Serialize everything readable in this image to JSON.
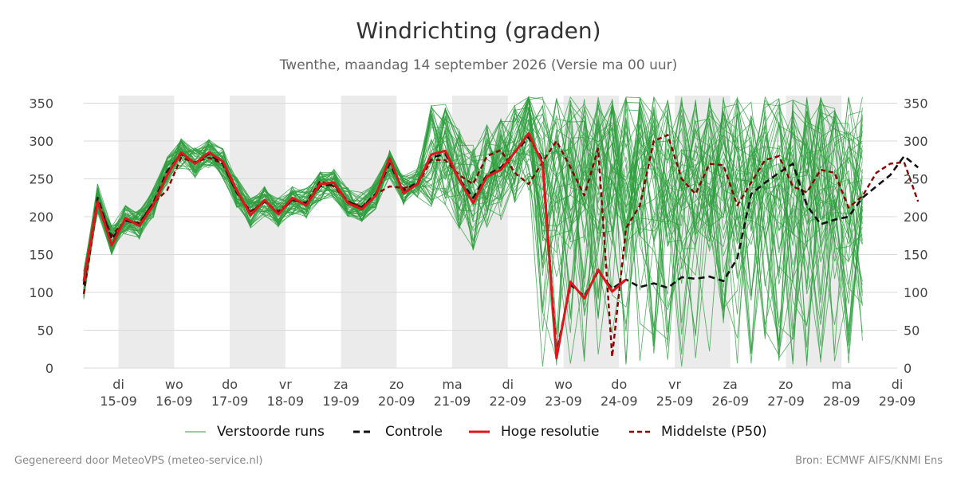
{
  "header": {
    "title": "Windrichting (graden)",
    "subtitle": "Twenthe, maandag 14 september 2026 (Versie ma 00 uur)"
  },
  "legend": {
    "ensemble": "Verstoorde runs",
    "control": "Controle",
    "hires": "Hoge resolutie",
    "median": "Middelste (P50)"
  },
  "footer": {
    "left": "Gegenereerd door MeteoVPS (meteo-service.nl)",
    "right": "Bron: ECMWF AIFS/KNMI Ens"
  },
  "colors": {
    "ensemble": "#2e9e3e",
    "control": "#111111",
    "hires": "#e0151b",
    "median": "#8b0000",
    "night_band": "#ebebeb",
    "grid": "#d9d9d9"
  },
  "chart_data": {
    "type": "line",
    "title": "Windrichting (graden)",
    "subtitle": "Twenthe, maandag 14 september 2026 (Versie ma 00 uur)",
    "ylim": [
      0,
      360
    ],
    "yticks": [
      0,
      50,
      100,
      150,
      200,
      250,
      300,
      350
    ],
    "xlim": [
      "2026-09-14 09:00",
      "2026-09-29 00:00"
    ],
    "x_ticks": [
      {
        "date": "2026-09-15",
        "day": "di",
        "label": "15-09"
      },
      {
        "date": "2026-09-16",
        "day": "wo",
        "label": "16-09"
      },
      {
        "date": "2026-09-17",
        "day": "do",
        "label": "17-09"
      },
      {
        "date": "2026-09-18",
        "day": "vr",
        "label": "18-09"
      },
      {
        "date": "2026-09-19",
        "day": "za",
        "label": "19-09"
      },
      {
        "date": "2026-09-20",
        "day": "zo",
        "label": "20-09"
      },
      {
        "date": "2026-09-21",
        "day": "ma",
        "label": "21-09"
      },
      {
        "date": "2026-09-22",
        "day": "di",
        "label": "22-09"
      },
      {
        "date": "2026-09-23",
        "day": "wo",
        "label": "23-09"
      },
      {
        "date": "2026-09-24",
        "day": "do",
        "label": "24-09"
      },
      {
        "date": "2026-09-25",
        "day": "vr",
        "label": "25-09"
      },
      {
        "date": "2026-09-26",
        "day": "za",
        "label": "26-09"
      },
      {
        "date": "2026-09-27",
        "day": "zo",
        "label": "27-09"
      },
      {
        "date": "2026-09-28",
        "day": "ma",
        "label": "28-09"
      },
      {
        "date": "2026-09-29",
        "day": "di",
        "label": "29-09"
      }
    ],
    "shaded_days": [
      "2026-09-15",
      "2026-09-17",
      "2026-09-19",
      "2026-09-21",
      "2026-09-23",
      "2026-09-25",
      "2026-09-27"
    ],
    "grid": true,
    "legend_position": "bottom",
    "series": [
      {
        "name": "Hoge resolutie",
        "style": "solid",
        "points": [
          [
            "2026-09-14 09:00",
            115
          ],
          [
            "2026-09-14 15:00",
            220
          ],
          [
            "2026-09-14 21:00",
            162
          ],
          [
            "2026-09-15 03:00",
            198
          ],
          [
            "2026-09-15 09:00",
            188
          ],
          [
            "2026-09-15 15:00",
            215
          ],
          [
            "2026-09-15 21:00",
            255
          ],
          [
            "2026-09-16 03:00",
            285
          ],
          [
            "2026-09-16 09:00",
            270
          ],
          [
            "2026-09-16 15:00",
            285
          ],
          [
            "2026-09-16 21:00",
            273
          ],
          [
            "2026-09-17 03:00",
            235
          ],
          [
            "2026-09-17 09:00",
            202
          ],
          [
            "2026-09-17 15:00",
            222
          ],
          [
            "2026-09-17 21:00",
            203
          ],
          [
            "2026-09-18 03:00",
            225
          ],
          [
            "2026-09-18 09:00",
            215
          ],
          [
            "2026-09-18 15:00",
            243
          ],
          [
            "2026-09-18 21:00",
            245
          ],
          [
            "2026-09-19 03:00",
            218
          ],
          [
            "2026-09-19 09:00",
            210
          ],
          [
            "2026-09-19 15:00",
            228
          ],
          [
            "2026-09-19 21:00",
            277
          ],
          [
            "2026-09-20 03:00",
            231
          ],
          [
            "2026-09-20 09:00",
            243
          ],
          [
            "2026-09-20 15:00",
            282
          ],
          [
            "2026-09-20 21:00",
            287
          ],
          [
            "2026-09-21 03:00",
            249
          ],
          [
            "2026-09-21 09:00",
            218
          ],
          [
            "2026-09-21 15:00",
            253
          ],
          [
            "2026-09-21 21:00",
            262
          ],
          [
            "2026-09-22 03:00",
            285
          ],
          [
            "2026-09-22 09:00",
            310
          ],
          [
            "2026-09-22 15:00",
            270
          ],
          [
            "2026-09-22 21:00",
            13
          ],
          [
            "2026-09-23 03:00",
            114
          ],
          [
            "2026-09-23 09:00",
            92
          ],
          [
            "2026-09-23 15:00",
            130
          ],
          [
            "2026-09-23 21:00",
            101
          ],
          [
            "2026-09-24 03:00",
            117
          ]
        ]
      },
      {
        "name": "Controle",
        "style": "dashed",
        "points": [
          [
            "2026-09-14 09:00",
            110
          ],
          [
            "2026-09-14 15:00",
            225
          ],
          [
            "2026-09-14 21:00",
            170
          ],
          [
            "2026-09-15 03:00",
            195
          ],
          [
            "2026-09-15 09:00",
            190
          ],
          [
            "2026-09-15 15:00",
            218
          ],
          [
            "2026-09-15 21:00",
            260
          ],
          [
            "2026-09-16 03:00",
            283
          ],
          [
            "2026-09-16 09:00",
            271
          ],
          [
            "2026-09-16 15:00",
            283
          ],
          [
            "2026-09-16 21:00",
            270
          ],
          [
            "2026-09-17 03:00",
            232
          ],
          [
            "2026-09-17 09:00",
            205
          ],
          [
            "2026-09-17 15:00",
            220
          ],
          [
            "2026-09-17 21:00",
            205
          ],
          [
            "2026-09-18 03:00",
            222
          ],
          [
            "2026-09-18 09:00",
            218
          ],
          [
            "2026-09-18 15:00",
            240
          ],
          [
            "2026-09-18 21:00",
            243
          ],
          [
            "2026-09-19 03:00",
            220
          ],
          [
            "2026-09-19 09:00",
            212
          ],
          [
            "2026-09-19 15:00",
            230
          ],
          [
            "2026-09-19 21:00",
            270
          ],
          [
            "2026-09-20 03:00",
            235
          ],
          [
            "2026-09-20 09:00",
            245
          ],
          [
            "2026-09-20 15:00",
            278
          ],
          [
            "2026-09-20 21:00",
            283
          ],
          [
            "2026-09-21 03:00",
            250
          ],
          [
            "2026-09-21 09:00",
            225
          ],
          [
            "2026-09-21 15:00",
            255
          ],
          [
            "2026-09-21 21:00",
            265
          ],
          [
            "2026-09-22 03:00",
            285
          ],
          [
            "2026-09-22 09:00",
            305
          ],
          [
            "2026-09-22 15:00",
            275
          ],
          [
            "2026-09-22 21:00",
            20
          ],
          [
            "2026-09-23 03:00",
            110
          ],
          [
            "2026-09-23 09:00",
            95
          ],
          [
            "2026-09-23 15:00",
            128
          ],
          [
            "2026-09-23 21:00",
            105
          ],
          [
            "2026-09-24 03:00",
            117
          ],
          [
            "2026-09-24 09:00",
            107
          ],
          [
            "2026-09-24 15:00",
            112
          ],
          [
            "2026-09-24 21:00",
            106
          ],
          [
            "2026-09-25 03:00",
            120
          ],
          [
            "2026-09-25 09:00",
            118
          ],
          [
            "2026-09-25 15:00",
            121
          ],
          [
            "2026-09-25 21:00",
            115
          ],
          [
            "2026-09-26 03:00",
            145
          ],
          [
            "2026-09-26 09:00",
            230
          ],
          [
            "2026-09-26 15:00",
            245
          ],
          [
            "2026-09-26 21:00",
            258
          ],
          [
            "2026-09-27 03:00",
            270
          ],
          [
            "2026-09-27 09:00",
            215
          ],
          [
            "2026-09-27 15:00",
            190
          ],
          [
            "2026-09-27 21:00",
            196
          ],
          [
            "2026-09-28 03:00",
            200
          ],
          [
            "2026-09-28 09:00",
            225
          ],
          [
            "2026-09-28 15:00",
            240
          ],
          [
            "2026-09-28 21:00",
            255
          ],
          [
            "2026-09-29 03:00",
            280
          ],
          [
            "2026-09-29 09:00",
            265
          ]
        ]
      },
      {
        "name": "Middelste (P50)",
        "style": "dashed",
        "points": [
          [
            "2026-09-14 09:00",
            98
          ],
          [
            "2026-09-14 15:00",
            220
          ],
          [
            "2026-09-14 21:00",
            175
          ],
          [
            "2026-09-15 03:00",
            195
          ],
          [
            "2026-09-15 09:00",
            192
          ],
          [
            "2026-09-15 15:00",
            218
          ],
          [
            "2026-09-15 21:00",
            235
          ],
          [
            "2026-09-16 03:00",
            278
          ],
          [
            "2026-09-16 09:00",
            272
          ],
          [
            "2026-09-16 15:00",
            278
          ],
          [
            "2026-09-16 21:00",
            270
          ],
          [
            "2026-09-17 03:00",
            232
          ],
          [
            "2026-09-17 09:00",
            207
          ],
          [
            "2026-09-17 15:00",
            220
          ],
          [
            "2026-09-17 21:00",
            207
          ],
          [
            "2026-09-18 03:00",
            222
          ],
          [
            "2026-09-18 09:00",
            218
          ],
          [
            "2026-09-18 15:00",
            247
          ],
          [
            "2026-09-18 21:00",
            240
          ],
          [
            "2026-09-19 03:00",
            220
          ],
          [
            "2026-09-19 09:00",
            213
          ],
          [
            "2026-09-19 15:00",
            230
          ],
          [
            "2026-09-19 21:00",
            240
          ],
          [
            "2026-09-20 03:00",
            238
          ],
          [
            "2026-09-20 09:00",
            242
          ],
          [
            "2026-09-20 15:00",
            275
          ],
          [
            "2026-09-20 21:00",
            275
          ],
          [
            "2026-09-21 03:00",
            255
          ],
          [
            "2026-09-21 09:00",
            243
          ],
          [
            "2026-09-21 15:00",
            280
          ],
          [
            "2026-09-21 21:00",
            288
          ],
          [
            "2026-09-22 03:00",
            258
          ],
          [
            "2026-09-22 09:00",
            243
          ],
          [
            "2026-09-22 15:00",
            272
          ],
          [
            "2026-09-22 21:00",
            300
          ],
          [
            "2026-09-23 03:00",
            265
          ],
          [
            "2026-09-23 09:00",
            228
          ],
          [
            "2026-09-23 15:00",
            290
          ],
          [
            "2026-09-23 21:00",
            15
          ],
          [
            "2026-09-24 03:00",
            185
          ],
          [
            "2026-09-24 09:00",
            215
          ],
          [
            "2026-09-24 15:00",
            300
          ],
          [
            "2026-09-24 21:00",
            308
          ],
          [
            "2026-09-25 03:00",
            250
          ],
          [
            "2026-09-25 09:00",
            230
          ],
          [
            "2026-09-25 15:00",
            270
          ],
          [
            "2026-09-25 21:00",
            268
          ],
          [
            "2026-09-26 03:00",
            215
          ],
          [
            "2026-09-26 09:00",
            245
          ],
          [
            "2026-09-26 15:00",
            275
          ],
          [
            "2026-09-26 21:00",
            280
          ],
          [
            "2026-09-27 03:00",
            240
          ],
          [
            "2026-09-27 09:00",
            232
          ],
          [
            "2026-09-27 15:00",
            262
          ],
          [
            "2026-09-27 21:00",
            258
          ],
          [
            "2026-09-28 03:00",
            212
          ],
          [
            "2026-09-28 09:00",
            227
          ],
          [
            "2026-09-28 15:00",
            258
          ],
          [
            "2026-09-28 21:00",
            270
          ],
          [
            "2026-09-29 03:00",
            272
          ],
          [
            "2026-09-29 09:00",
            220
          ]
        ]
      }
    ]
  }
}
